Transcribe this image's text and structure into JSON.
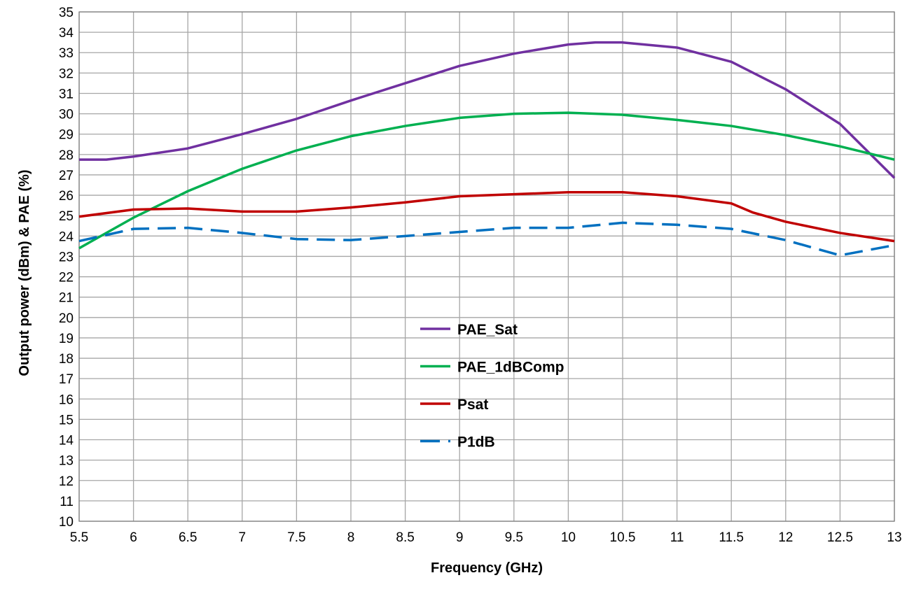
{
  "chart_data": {
    "type": "line",
    "title": "",
    "xlabel": "Frequency (GHz)",
    "ylabel": "Output power (dBm) & PAE (%)",
    "xlim": [
      5.5,
      13
    ],
    "ylim": [
      10,
      35
    ],
    "xticks": [
      5.5,
      6,
      6.5,
      7,
      7.5,
      8,
      8.5,
      9,
      9.5,
      10,
      10.5,
      11,
      11.5,
      12,
      12.5,
      13
    ],
    "yticks": [
      10,
      11,
      12,
      13,
      14,
      15,
      16,
      17,
      18,
      19,
      20,
      21,
      22,
      23,
      24,
      25,
      26,
      27,
      28,
      29,
      30,
      31,
      32,
      33,
      34,
      35
    ],
    "grid": true,
    "legend_placement": "center",
    "series": [
      {
        "name": "PAE_Sat",
        "color": "#7030A0",
        "dash": "solid",
        "x": [
          5.5,
          5.75,
          6,
          6.5,
          7,
          7.5,
          8,
          8.5,
          9,
          9.5,
          10,
          10.25,
          10.5,
          11,
          11.5,
          12,
          12.5,
          13
        ],
        "y": [
          27.75,
          27.75,
          27.9,
          28.3,
          29.0,
          29.75,
          30.65,
          31.5,
          32.35,
          32.95,
          33.4,
          33.5,
          33.5,
          33.25,
          32.55,
          31.2,
          29.5,
          26.85
        ]
      },
      {
        "name": "PAE_1dBComp",
        "color": "#00B050",
        "dash": "solid",
        "x": [
          5.5,
          6,
          6.5,
          7,
          7.5,
          8,
          8.5,
          9,
          9.5,
          10,
          10.5,
          11,
          11.5,
          12,
          12.5,
          13
        ],
        "y": [
          23.4,
          24.9,
          26.2,
          27.3,
          28.2,
          28.9,
          29.4,
          29.8,
          30.0,
          30.05,
          29.95,
          29.7,
          29.4,
          28.95,
          28.4,
          27.75
        ]
      },
      {
        "name": "Psat",
        "color": "#C00000",
        "dash": "solid",
        "x": [
          5.5,
          6,
          6.5,
          7,
          7.5,
          8,
          8.5,
          9,
          9.5,
          10,
          10.5,
          11,
          11.5,
          11.7,
          12,
          12.5,
          13
        ],
        "y": [
          24.95,
          25.3,
          25.35,
          25.2,
          25.2,
          25.4,
          25.65,
          25.95,
          26.05,
          26.15,
          26.15,
          25.95,
          25.6,
          25.15,
          24.7,
          24.15,
          23.75
        ]
      },
      {
        "name": "P1dB",
        "color": "#0070C0",
        "dash": "dashed",
        "x": [
          5.5,
          6,
          6.5,
          7,
          7.5,
          8,
          8.5,
          9,
          9.5,
          10,
          10.5,
          11,
          11.5,
          12,
          12.5,
          13
        ],
        "y": [
          23.75,
          24.35,
          24.4,
          24.15,
          23.85,
          23.8,
          24.0,
          24.2,
          24.4,
          24.4,
          24.65,
          24.55,
          24.35,
          23.8,
          23.05,
          23.55
        ]
      }
    ]
  }
}
